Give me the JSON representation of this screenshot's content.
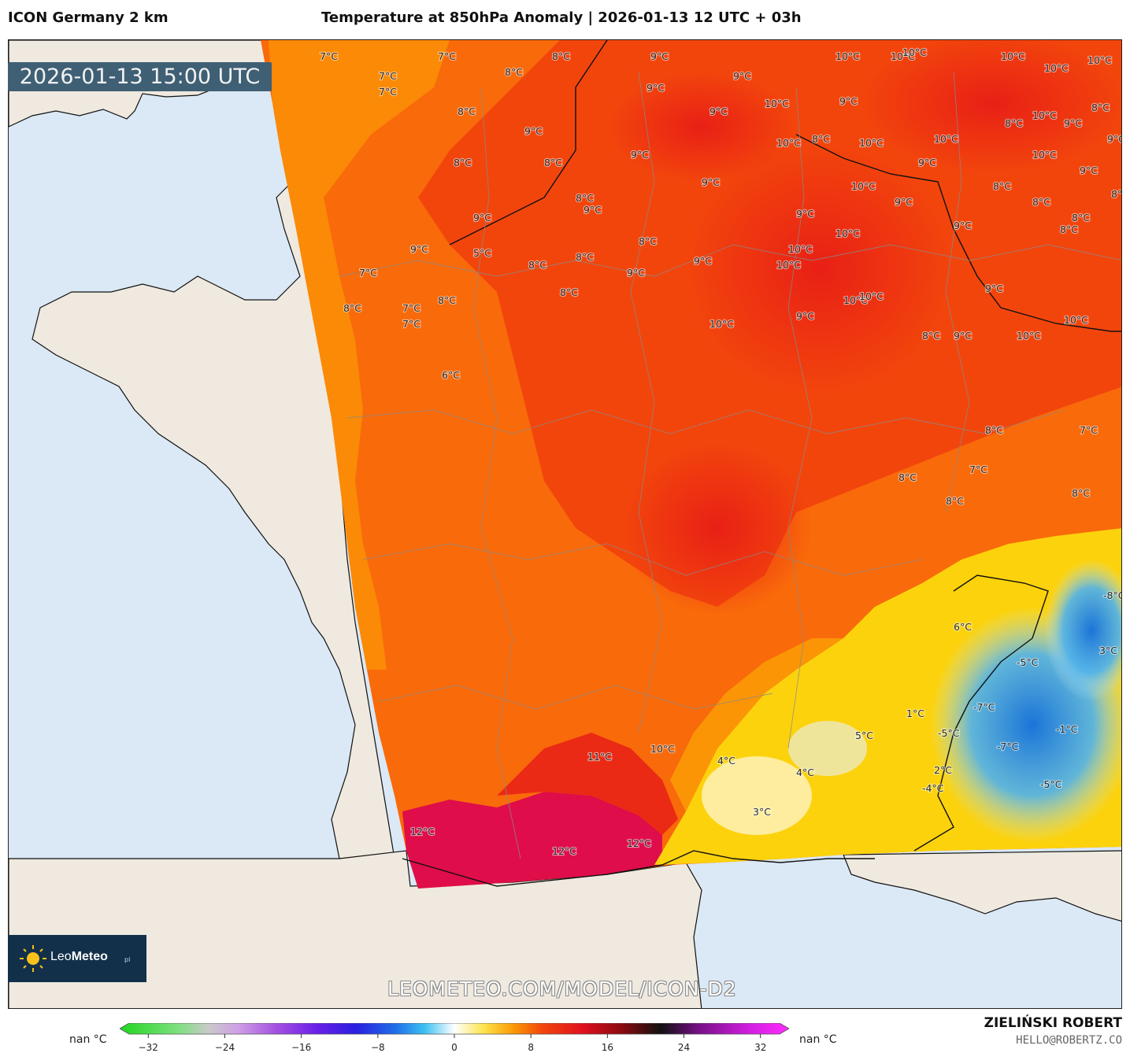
{
  "header": {
    "model": "ICON Germany 2 km",
    "title": "Temperature at 850hPa Anomaly | 2026-01-13 12 UTC + 03h"
  },
  "map": {
    "timestamp": "2026-01-13 15:00 UTC",
    "watermark_url": "LEOMETEO.COM/MODEL/ICON-D2",
    "temperature_labels": [
      "7°C",
      "7°C",
      "7°C",
      "8°C",
      "8°C",
      "9°C",
      "10°C",
      "10°C",
      "10°C",
      "10°C",
      "8°C",
      "9°C",
      "10°C",
      "9°C",
      "8°C",
      "8°C",
      "9°C",
      "9°C",
      "9°C",
      "8°C",
      "9°C",
      "10°C",
      "10°C",
      "7°C",
      "8°C",
      "9°C",
      "9°C",
      "10°C",
      "10°C",
      "10°C",
      "9°C",
      "10°C",
      "9°C",
      "7°C",
      "8°C",
      "9°C",
      "8°C",
      "8°C",
      "9°C",
      "10°C",
      "9°C",
      "10°C",
      "10°C",
      "9°C",
      "8°C",
      "8°C",
      "9°C",
      "8°C",
      "9°C",
      "10°C",
      "9°C",
      "8°C",
      "8°C",
      "8°C",
      "9°C",
      "8°C",
      "9°C",
      "10°C",
      "8°C",
      "8°C",
      "8°C",
      "9°C",
      "10°C",
      "10°C",
      "10°C",
      "10°C",
      "9°C",
      "10°C",
      "9°C",
      "7°C",
      "8°C",
      "7°C",
      "8°C",
      "8°C",
      "8°C",
      "10°C",
      "11°C",
      "12°C",
      "12°C",
      "12°C",
      "7°C",
      "8°C",
      "7°C",
      "6°C",
      "5°C",
      "6°C",
      "4°C",
      "4°C",
      "3°C",
      "5°C",
      "2°C",
      "-5°C",
      "-7°C",
      "-7°C",
      "-4°C",
      "-5°C",
      "-1°C",
      "3°C",
      "-8°C",
      "-5°C",
      "1°C"
    ],
    "colors": {
      "sea": "#dbe8f5",
      "land": "#efe9df",
      "warm_base": "#f96a0a",
      "warm_mid": "#f2450c",
      "warm_high": "#e81e16",
      "hot": "#df0d4a",
      "mild": "#fb8f06",
      "cool_yellow": "#fcd20d",
      "cold_blue": "#2a8fe0"
    }
  },
  "brand": {
    "logo_name": "LeoMeteo",
    "logo_suffix": "pl",
    "author": "ZIELIŃSKI ROBERT",
    "email": "HELLO@ROBERTZ.CO"
  },
  "legend": {
    "nan_left": "nan °C",
    "nan_right": "nan °C",
    "ticks": [
      "−32",
      "−24",
      "−16",
      "−8",
      "0",
      "8",
      "16",
      "24",
      "32"
    ],
    "tick_values": [
      -32,
      -24,
      -16,
      -8,
      0,
      8,
      16,
      24,
      32
    ],
    "range": [
      -34,
      34
    ],
    "stops": [
      {
        "v": -34,
        "c": "#1fd61f"
      },
      {
        "v": -28,
        "c": "#7fe07f"
      },
      {
        "v": -25,
        "c": "#c9c9c9"
      },
      {
        "v": -22,
        "c": "#cfa0e6"
      },
      {
        "v": -18,
        "c": "#a24fe0"
      },
      {
        "v": -14,
        "c": "#6a1fe8"
      },
      {
        "v": -10,
        "c": "#2a1fe0"
      },
      {
        "v": -6,
        "c": "#1f6ee8"
      },
      {
        "v": -3,
        "c": "#3ec2f2"
      },
      {
        "v": 0,
        "c": "#ffffff"
      },
      {
        "v": 3,
        "c": "#fce44a"
      },
      {
        "v": 6,
        "c": "#fb9a06"
      },
      {
        "v": 9,
        "c": "#f2450c"
      },
      {
        "v": 13,
        "c": "#e0101e"
      },
      {
        "v": 17,
        "c": "#8a0a10"
      },
      {
        "v": 21,
        "c": "#111111"
      },
      {
        "v": 25,
        "c": "#7a108a"
      },
      {
        "v": 30,
        "c": "#d21ee0"
      },
      {
        "v": 34,
        "c": "#ff2cff"
      }
    ]
  }
}
